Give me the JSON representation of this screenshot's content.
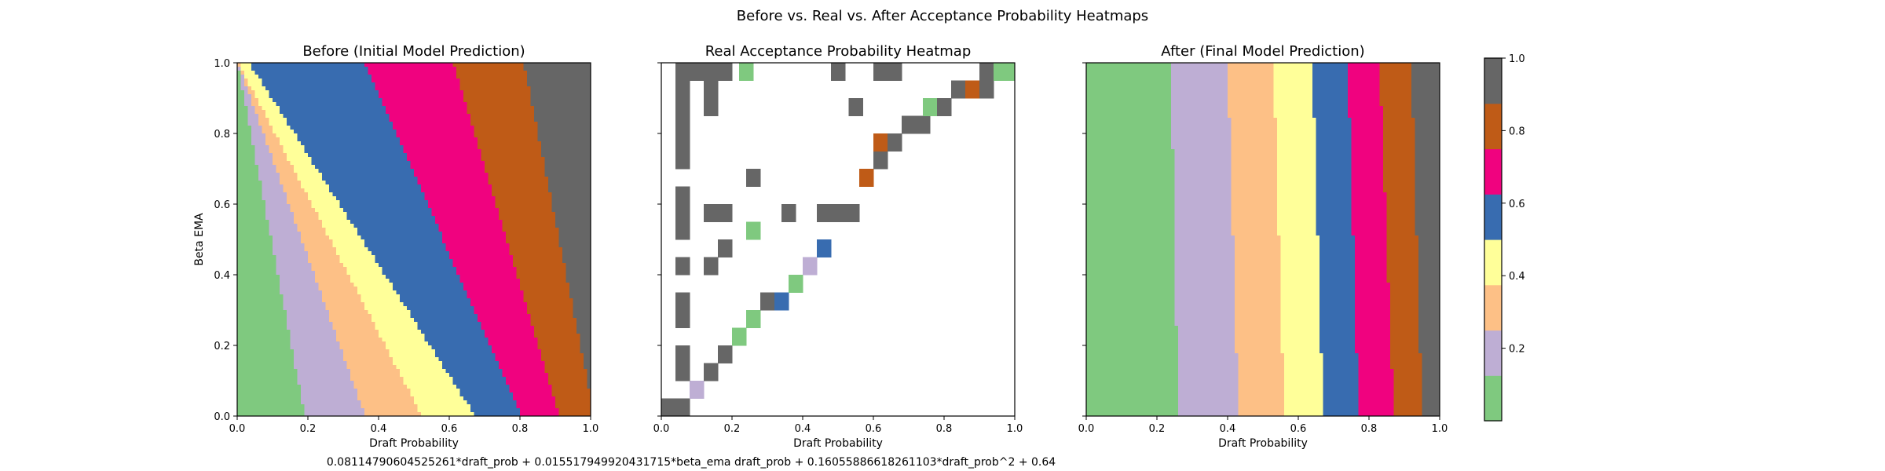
{
  "figure": {
    "suptitle": "Before vs. Real vs. After Acceptance Probability Heatmaps",
    "footer": "0.08114790604525261*draft_prob + 0.015517949920431715*beta_ema draft_prob + 0.16055886618261103*draft_prob^2 + 0.64"
  },
  "chart_data": [
    {
      "type": "heatmap",
      "title": "Before (Initial Model Prediction)",
      "xlabel": "Draft Probability",
      "ylabel": "Beta EMA",
      "xlim": [
        0,
        1
      ],
      "ylim": [
        0,
        1
      ],
      "xticks": [
        "0.0",
        "0.2",
        "0.4",
        "0.6",
        "0.8",
        "1.0"
      ],
      "yticks": [
        "0.0",
        "0.2",
        "0.4",
        "0.6",
        "0.8",
        "1.0"
      ],
      "bands": [
        {
          "color": "#7fc97f",
          "bottom_x": 0.0,
          "top_x": 0.0
        },
        {
          "color": "#beaed4",
          "bottom_x": 0.19,
          "top_x": 0.0
        },
        {
          "color": "#fdc086",
          "bottom_x": 0.36,
          "top_x": 0.0
        },
        {
          "color": "#ffff99",
          "bottom_x": 0.52,
          "top_x": 0.0
        },
        {
          "color": "#386cb0",
          "bottom_x": 0.67,
          "top_x": 0.03
        },
        {
          "color": "#f0027f",
          "bottom_x": 0.8,
          "top_x": 0.36
        },
        {
          "color": "#bf5b17",
          "bottom_x": 0.91,
          "top_x": 0.61
        },
        {
          "color": "#666666",
          "bottom_x": 1.01,
          "top_x": 0.81
        }
      ]
    },
    {
      "type": "heatmap",
      "title": "Real Acceptance Probability Heatmap",
      "xlabel": "Draft Probability",
      "ylabel": "",
      "xlim": [
        0,
        1
      ],
      "ylim": [
        0,
        1
      ],
      "xticks": [
        "0.0",
        "0.2",
        "0.4",
        "0.6",
        "0.8",
        "1.0"
      ],
      "yticks": [],
      "cells": [
        {
          "x": 0.0,
          "y": 0.0,
          "v": 1.0
        },
        {
          "x": 0.04,
          "y": 0.0,
          "v": 1.0
        },
        {
          "x": 0.08,
          "y": 0.05,
          "v": 0.25
        },
        {
          "x": 0.04,
          "y": 0.1,
          "v": 1.0
        },
        {
          "x": 0.12,
          "y": 0.1,
          "v": 1.0
        },
        {
          "x": 0.04,
          "y": 0.15,
          "v": 1.0
        },
        {
          "x": 0.16,
          "y": 0.15,
          "v": 1.0
        },
        {
          "x": 0.2,
          "y": 0.2,
          "v": 0.1
        },
        {
          "x": 0.04,
          "y": 0.25,
          "v": 1.0
        },
        {
          "x": 0.24,
          "y": 0.25,
          "v": 0.1
        },
        {
          "x": 0.04,
          "y": 0.3,
          "v": 1.0
        },
        {
          "x": 0.28,
          "y": 0.3,
          "v": 1.0
        },
        {
          "x": 0.32,
          "y": 0.3,
          "v": 0.6
        },
        {
          "x": 0.36,
          "y": 0.35,
          "v": 0.1
        },
        {
          "x": 0.04,
          "y": 0.4,
          "v": 1.0
        },
        {
          "x": 0.12,
          "y": 0.4,
          "v": 1.0
        },
        {
          "x": 0.4,
          "y": 0.4,
          "v": 0.25
        },
        {
          "x": 0.16,
          "y": 0.45,
          "v": 1.0
        },
        {
          "x": 0.44,
          "y": 0.45,
          "v": 0.6
        },
        {
          "x": 0.04,
          "y": 0.5,
          "v": 1.0
        },
        {
          "x": 0.24,
          "y": 0.5,
          "v": 0.1
        },
        {
          "x": 0.04,
          "y": 0.55,
          "v": 1.0
        },
        {
          "x": 0.12,
          "y": 0.55,
          "v": 1.0
        },
        {
          "x": 0.16,
          "y": 0.55,
          "v": 1.0
        },
        {
          "x": 0.34,
          "y": 0.55,
          "v": 1.0
        },
        {
          "x": 0.44,
          "y": 0.55,
          "v": 1.0
        },
        {
          "x": 0.48,
          "y": 0.55,
          "v": 1.0
        },
        {
          "x": 0.52,
          "y": 0.55,
          "v": 1.0
        },
        {
          "x": 0.04,
          "y": 0.6,
          "v": 1.0
        },
        {
          "x": 0.24,
          "y": 0.65,
          "v": 1.0
        },
        {
          "x": 0.56,
          "y": 0.65,
          "v": 0.8
        },
        {
          "x": 0.04,
          "y": 0.7,
          "v": 1.0
        },
        {
          "x": 0.6,
          "y": 0.7,
          "v": 1.0
        },
        {
          "x": 0.04,
          "y": 0.75,
          "v": 1.0
        },
        {
          "x": 0.6,
          "y": 0.75,
          "v": 0.8
        },
        {
          "x": 0.64,
          "y": 0.75,
          "v": 1.0
        },
        {
          "x": 0.04,
          "y": 0.8,
          "v": 1.0
        },
        {
          "x": 0.68,
          "y": 0.8,
          "v": 1.0
        },
        {
          "x": 0.72,
          "y": 0.8,
          "v": 1.0
        },
        {
          "x": 0.04,
          "y": 0.85,
          "v": 1.0
        },
        {
          "x": 0.12,
          "y": 0.85,
          "v": 1.0
        },
        {
          "x": 0.53,
          "y": 0.85,
          "v": 1.0
        },
        {
          "x": 0.74,
          "y": 0.85,
          "v": 0.1
        },
        {
          "x": 0.78,
          "y": 0.85,
          "v": 1.0
        },
        {
          "x": 0.04,
          "y": 0.9,
          "v": 1.0
        },
        {
          "x": 0.12,
          "y": 0.9,
          "v": 1.0
        },
        {
          "x": 0.82,
          "y": 0.9,
          "v": 1.0
        },
        {
          "x": 0.86,
          "y": 0.9,
          "v": 0.8
        },
        {
          "x": 0.9,
          "y": 0.9,
          "v": 1.0
        },
        {
          "x": 0.04,
          "y": 0.95,
          "v": 1.0
        },
        {
          "x": 0.08,
          "y": 0.95,
          "v": 1.0
        },
        {
          "x": 0.12,
          "y": 0.95,
          "v": 1.0
        },
        {
          "x": 0.16,
          "y": 0.95,
          "v": 1.0
        },
        {
          "x": 0.22,
          "y": 0.95,
          "v": 0.1
        },
        {
          "x": 0.48,
          "y": 0.95,
          "v": 1.0
        },
        {
          "x": 0.6,
          "y": 0.95,
          "v": 1.0
        },
        {
          "x": 0.64,
          "y": 0.95,
          "v": 1.0
        },
        {
          "x": 0.9,
          "y": 0.95,
          "v": 1.0
        },
        {
          "x": 0.94,
          "y": 0.95,
          "v": 0.1
        },
        {
          "x": 0.97,
          "y": 0.95,
          "v": 0.1
        }
      ]
    },
    {
      "type": "heatmap",
      "title": "After (Final Model Prediction)",
      "xlabel": "Draft Probability",
      "ylabel": "",
      "xlim": [
        0,
        1
      ],
      "ylim": [
        0,
        1
      ],
      "xticks": [
        "0.0",
        "0.2",
        "0.4",
        "0.6",
        "0.8",
        "1.0"
      ],
      "yticks": [],
      "bands": [
        {
          "color": "#7fc97f",
          "bottom_x": 0.0,
          "top_x": 0.0
        },
        {
          "color": "#beaed4",
          "bottom_x": 0.26,
          "top_x": 0.24
        },
        {
          "color": "#fdc086",
          "bottom_x": 0.43,
          "top_x": 0.4
        },
        {
          "color": "#ffff99",
          "bottom_x": 0.56,
          "top_x": 0.53
        },
        {
          "color": "#386cb0",
          "bottom_x": 0.67,
          "top_x": 0.64
        },
        {
          "color": "#f0027f",
          "bottom_x": 0.77,
          "top_x": 0.74
        },
        {
          "color": "#bf5b17",
          "bottom_x": 0.87,
          "top_x": 0.83
        },
        {
          "color": "#666666",
          "bottom_x": 0.95,
          "top_x": 0.92
        }
      ]
    }
  ],
  "colorbar": {
    "colors": [
      "#7fc97f",
      "#beaed4",
      "#fdc086",
      "#ffff99",
      "#386cb0",
      "#f0027f",
      "#bf5b17",
      "#666666"
    ],
    "ticks": [
      {
        "value": 0.2,
        "label": "0.2"
      },
      {
        "value": 0.4,
        "label": "0.4"
      },
      {
        "value": 0.6,
        "label": "0.6"
      },
      {
        "value": 0.8,
        "label": "0.8"
      },
      {
        "value": 1.0,
        "label": "1.0"
      }
    ],
    "range": [
      0,
      1
    ]
  }
}
